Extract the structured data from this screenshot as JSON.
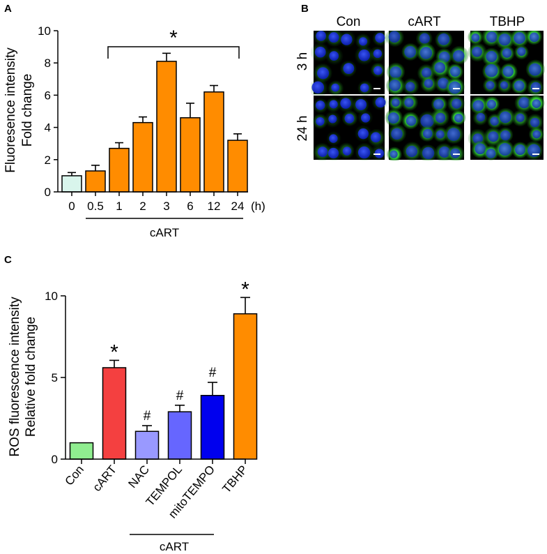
{
  "panels": {
    "a": "A",
    "b": "B",
    "c": "C"
  },
  "chart_data": [
    {
      "id": "A",
      "type": "bar",
      "categories": [
        "0",
        "0.5",
        "1",
        "2",
        "3",
        "6",
        "12",
        "24"
      ],
      "values": [
        1.0,
        1.3,
        2.7,
        4.3,
        8.1,
        4.6,
        6.2,
        3.2
      ],
      "errors": [
        0.2,
        0.35,
        0.35,
        0.35,
        0.5,
        0.9,
        0.4,
        0.4
      ],
      "ylabel": [
        "Fluoresence intensity",
        "Fold change"
      ],
      "xunit": "(h)",
      "ylim": [
        0,
        10
      ],
      "yticks": [
        "0",
        "2",
        "4",
        "6",
        "8",
        "10"
      ],
      "group_label": "cART",
      "significance": "*",
      "colors": [
        "#d9f5ec",
        "#ff8c00",
        "#ff8c00",
        "#ff8c00",
        "#ff8c00",
        "#ff8c00",
        "#ff8c00",
        "#ff8c00"
      ]
    },
    {
      "id": "C",
      "type": "bar",
      "categories": [
        "Con",
        "cART",
        "NAC",
        "TEMPOL",
        "mitoTEMPO",
        "TBHP"
      ],
      "values": [
        1.0,
        5.6,
        1.7,
        2.9,
        3.9,
        8.9
      ],
      "errors": [
        0.0,
        0.45,
        0.35,
        0.4,
        0.8,
        1.0
      ],
      "ylabel": [
        "ROS fluorescence intensity",
        "Relative fold change"
      ],
      "ylim": [
        0,
        10
      ],
      "yticks": [
        "0",
        "5",
        "10"
      ],
      "annotations": [
        "",
        "*",
        "#",
        "#",
        "#",
        "*"
      ],
      "group_label": "cART",
      "colors": [
        "#90ee90",
        "#f44040",
        "#9999ff",
        "#6666ff",
        "#0000ee",
        "#ff8c00"
      ]
    }
  ],
  "microscopy": {
    "columns": [
      "Con",
      "cART",
      "TBHP"
    ],
    "rows": [
      "3 h",
      "24 h"
    ]
  }
}
